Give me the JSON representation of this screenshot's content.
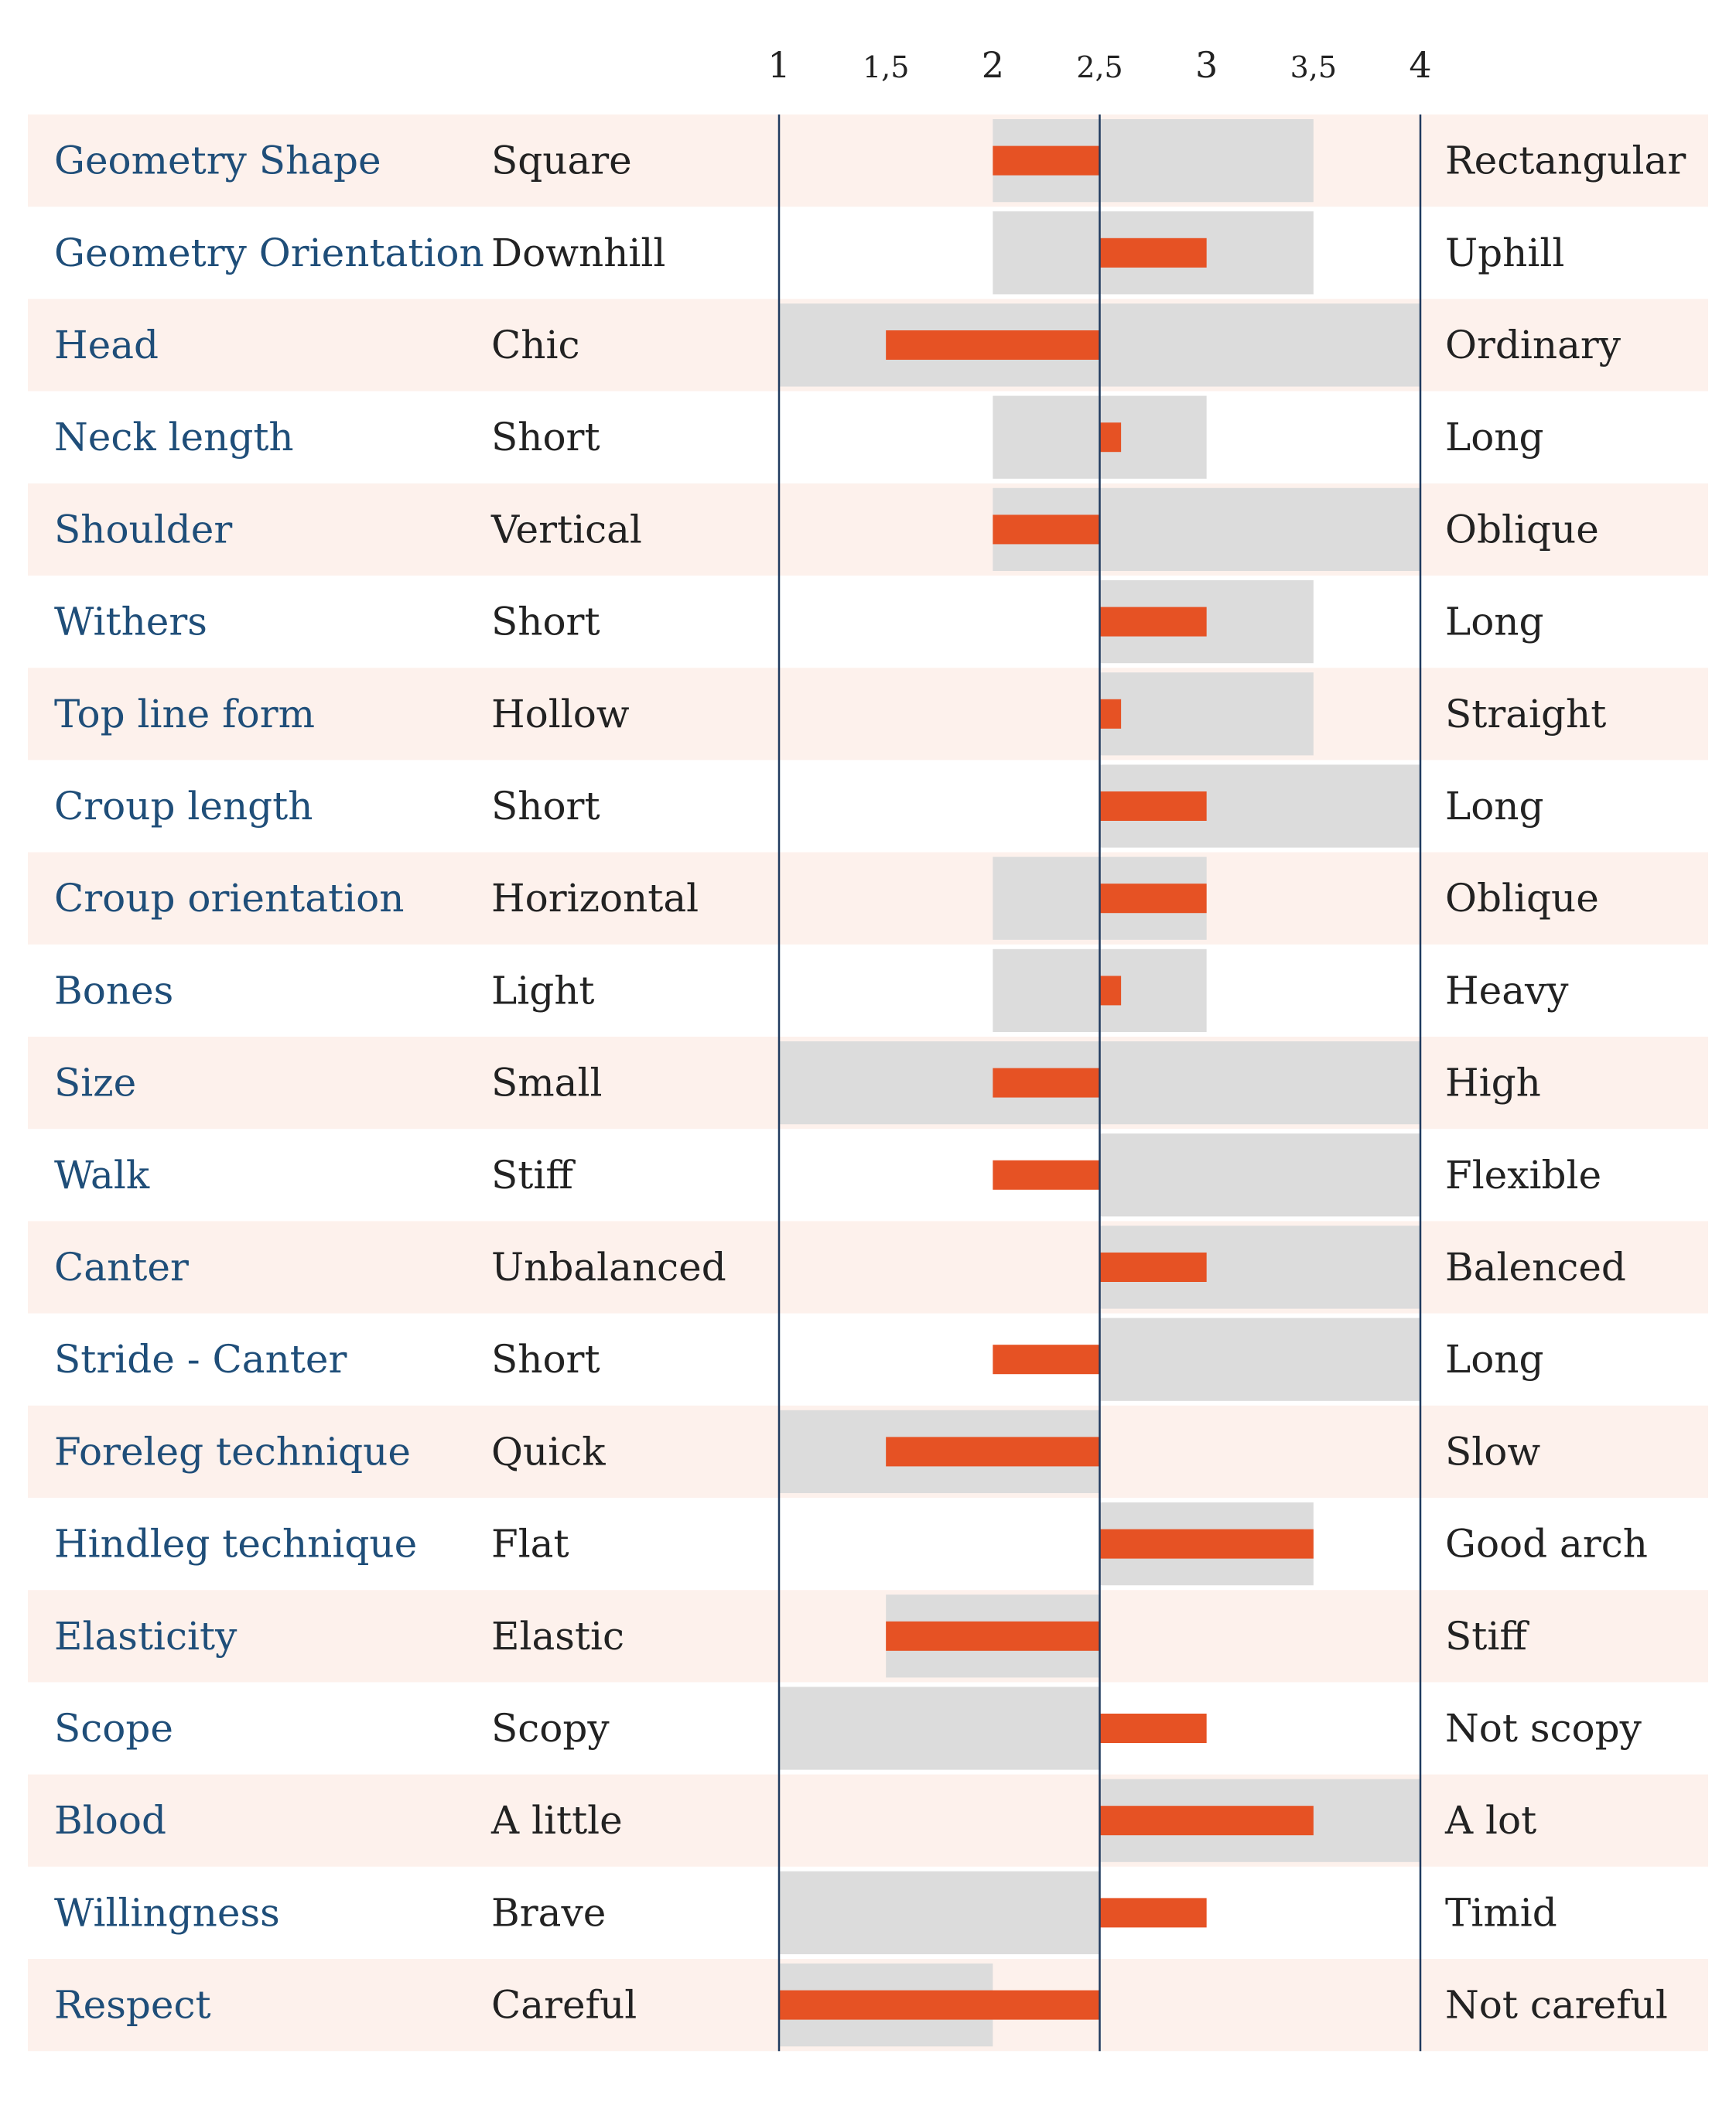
{
  "chart_data": {
    "type": "bar",
    "orientation": "horizontal",
    "x_min": 1,
    "x_max": 4,
    "baseline": 2.5,
    "ticks": [
      {
        "value": 1,
        "label": "1"
      },
      {
        "value": 1.5,
        "label": "1,5"
      },
      {
        "value": 2,
        "label": "2"
      },
      {
        "value": 2.5,
        "label": "2,5"
      },
      {
        "value": 3,
        "label": "3"
      },
      {
        "value": 3.5,
        "label": "3,5"
      },
      {
        "value": 4,
        "label": "4"
      }
    ],
    "colors": {
      "bar": "#e65224",
      "range": "#dcdcdc",
      "row_alt": "#fdf1ec",
      "trait_text": "#1f4e79",
      "axis_line": "#1f3a5f"
    },
    "rows": [
      {
        "trait": "Geometry Shape",
        "left": "Square",
        "right": "Rectangular",
        "range": [
          2,
          3.5
        ],
        "value": 2
      },
      {
        "trait": "Geometry Orientation",
        "left": "Downhill",
        "right": "Uphill",
        "range": [
          2,
          3.5
        ],
        "value": 3
      },
      {
        "trait": "Head",
        "left": "Chic",
        "right": "Ordinary",
        "range": [
          1,
          4
        ],
        "value": 1.5
      },
      {
        "trait": "Neck length",
        "left": "Short",
        "right": "Long",
        "range": [
          2,
          3
        ],
        "value": 2.6
      },
      {
        "trait": "Shoulder",
        "left": "Vertical",
        "right": "Oblique",
        "range": [
          2,
          4
        ],
        "value": 2
      },
      {
        "trait": "Withers",
        "left": "Short",
        "right": "Long",
        "range": [
          2.5,
          3.5
        ],
        "value": 3
      },
      {
        "trait": "Top line form",
        "left": "Hollow",
        "right": "Straight",
        "range": [
          2.5,
          3.5
        ],
        "value": 2.6
      },
      {
        "trait": "Croup length",
        "left": "Short",
        "right": "Long",
        "range": [
          2.5,
          4
        ],
        "value": 3
      },
      {
        "trait": "Croup orientation",
        "left": "Horizontal",
        "right": "Oblique",
        "range": [
          2,
          3
        ],
        "value": 3
      },
      {
        "trait": "Bones",
        "left": "Light",
        "right": "Heavy",
        "range": [
          2,
          3
        ],
        "value": 2.6
      },
      {
        "trait": "Size",
        "left": "Small",
        "right": "High",
        "range": [
          1,
          4
        ],
        "value": 2
      },
      {
        "trait": "Walk",
        "left": "Stiff",
        "right": "Flexible",
        "range": [
          2.5,
          4
        ],
        "value": 2
      },
      {
        "trait": "Canter",
        "left": "Unbalanced",
        "right": "Balenced",
        "range": [
          2.5,
          4
        ],
        "value": 3
      },
      {
        "trait": "Stride - Canter",
        "left": "Short",
        "right": "Long",
        "range": [
          2.5,
          4
        ],
        "value": 2
      },
      {
        "trait": "Foreleg technique",
        "left": "Quick",
        "right": "Slow",
        "range": [
          1,
          2.5
        ],
        "value": 1.5
      },
      {
        "trait": "Hindleg technique",
        "left": "Flat",
        "right": "Good arch",
        "range": [
          2.5,
          3.5
        ],
        "value": 3.5
      },
      {
        "trait": "Elasticity",
        "left": "Elastic",
        "right": "Stiff",
        "range": [
          1.5,
          2.5
        ],
        "value": 1.5
      },
      {
        "trait": "Scope",
        "left": "Scopy",
        "right": "Not scopy",
        "range": [
          1,
          2.5
        ],
        "value": 3
      },
      {
        "trait": "Blood",
        "left": "A little",
        "right": "A lot",
        "range": [
          2.5,
          4
        ],
        "value": 3.5
      },
      {
        "trait": "Willingness",
        "left": "Brave",
        "right": "Timid",
        "range": [
          1,
          2.5
        ],
        "value": 3
      },
      {
        "trait": "Respect",
        "left": "Careful",
        "right": "Not careful",
        "range": [
          1,
          2
        ],
        "value": 1
      }
    ]
  }
}
